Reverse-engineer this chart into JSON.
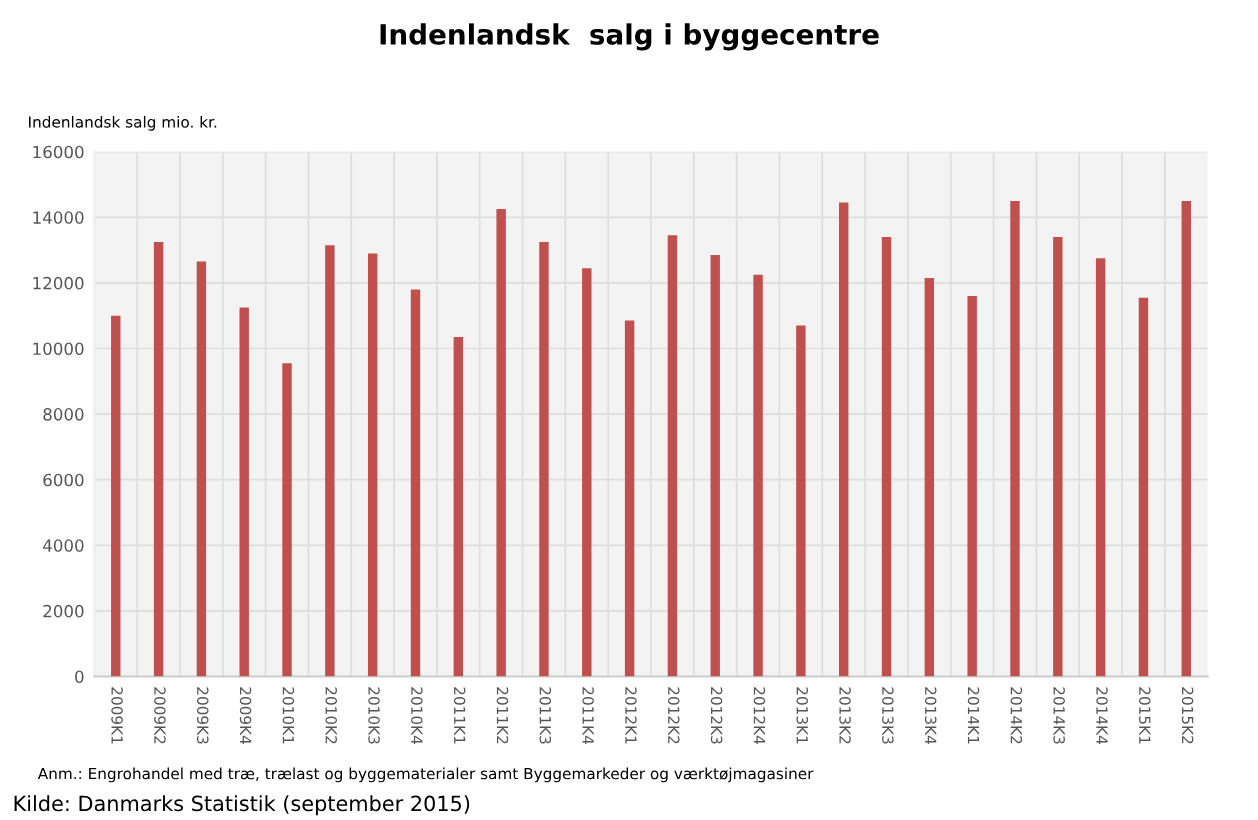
{
  "chart_data": {
    "type": "bar",
    "title": "Indenlandsk  salg i byggecentre",
    "ylabel": "Indenlandsk salg mio. kr.",
    "categories": [
      "2009K1",
      "2009K2",
      "2009K3",
      "2009K4",
      "2010K1",
      "2010K2",
      "2010K3",
      "2010K4",
      "2011K1",
      "2011K2",
      "2011K3",
      "2011K4",
      "2012K1",
      "2012K2",
      "2012K3",
      "2012K4",
      "2013K1",
      "2013K2",
      "2013K3",
      "2013K4",
      "2014K1",
      "2014K2",
      "2014K3",
      "2014K4",
      "2015K1",
      "2015K2"
    ],
    "values": [
      11000,
      13250,
      12650,
      11250,
      9550,
      13150,
      12900,
      11800,
      10350,
      14250,
      13250,
      12450,
      10850,
      13450,
      12850,
      12250,
      10700,
      14450,
      13400,
      12150,
      11600,
      14500,
      13400,
      12750,
      11550,
      14500
    ],
    "color": "#c0504d",
    "ylim": [
      0,
      16000
    ],
    "yticks": [
      0,
      2000,
      4000,
      6000,
      8000,
      10000,
      12000,
      14000,
      16000
    ],
    "grid": true,
    "legend": false,
    "annotations": [
      "Anm.: Engrohandel med træ, trælast og byggematerialer samt Byggemarkeder og værktøjmagasiner",
      "Kilde: Danmarks Statistik (september 2015)"
    ]
  }
}
